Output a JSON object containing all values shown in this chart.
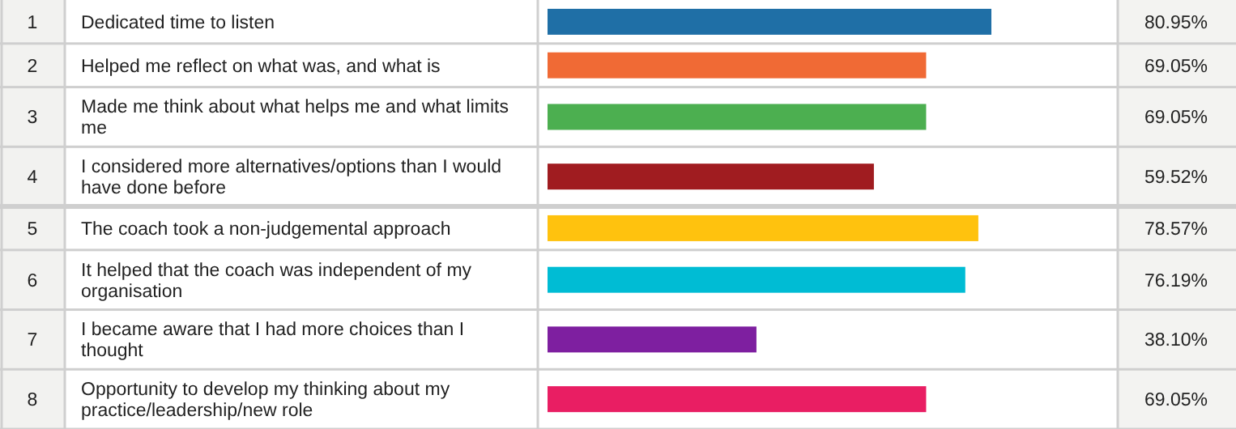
{
  "chart_data": {
    "type": "bar",
    "orientation": "horizontal",
    "tick_labels": "y",
    "categories": [
      "Dedicated time to listen",
      "Helped me reflect on what was, and what is",
      "Made me think about what helps me and what limits me",
      "I considered more alternatives/options than I would have done before",
      "The coach took a non-judgemental approach",
      "It helped that the coach was independent of my organisation",
      "I became aware that I had more choices than I thought",
      "Opportunity to develop my thinking about my practice/leadership/new role"
    ],
    "values": [
      80.95,
      69.05,
      69.05,
      59.52,
      78.57,
      76.19,
      38.1,
      69.05
    ],
    "value_labels": [
      "80.95%",
      "69.05%",
      "69.05%",
      "59.52%",
      "78.57%",
      "76.19%",
      "38.10%",
      "69.05%"
    ],
    "colors": [
      "#1f6fa6",
      "#f06a35",
      "#4caf50",
      "#a01c20",
      "#ffc20e",
      "#00bcd4",
      "#7e1fa0",
      "#e91e63"
    ],
    "annotations": [
      "1",
      "2",
      "3",
      "4",
      "5",
      "6",
      "7",
      "8"
    ]
  }
}
